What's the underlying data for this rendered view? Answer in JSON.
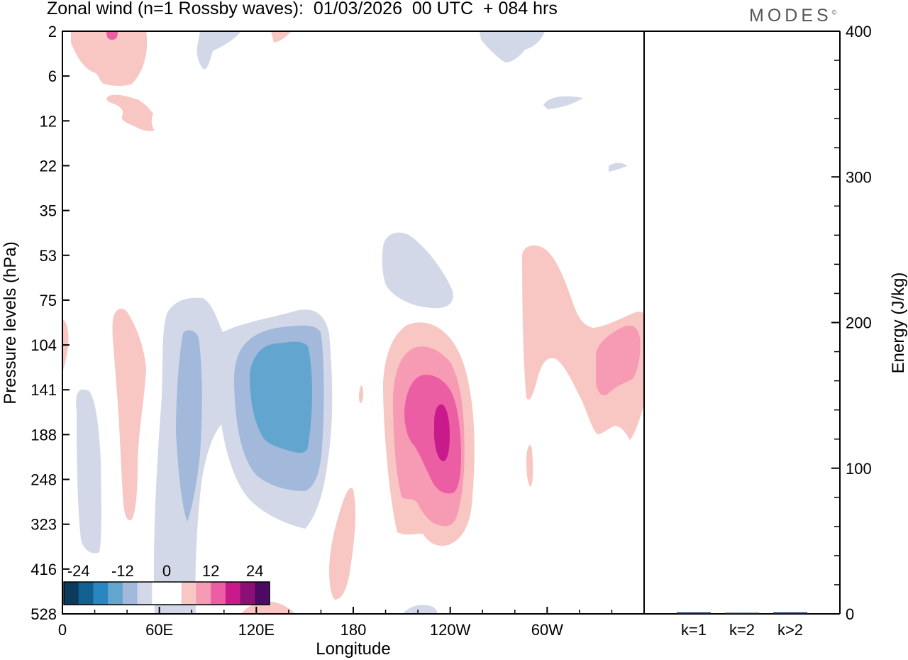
{
  "header": {
    "title": "Zonal wind (n=1 Rossby waves):  01/03/2026  00 UTC  + 084 hrs",
    "brand": "MODES",
    "brand_mark": "©"
  },
  "chart_data": [
    {
      "type": "heatmap",
      "title": "Zonal wind (n=1 Rossby waves):  01/03/2026  00 UTC  + 084 hrs",
      "xlabel": "Longitude",
      "ylabel": "Pressure levels (hPa)",
      "x_ticks": [
        "0",
        "60E",
        "120E",
        "180",
        "120W",
        "60W"
      ],
      "x_tick_values": [
        0,
        60,
        120,
        180,
        240,
        300
      ],
      "xlim": [
        0,
        360
      ],
      "y_ticks": [
        "2",
        "6",
        "12",
        "22",
        "35",
        "53",
        "75",
        "104",
        "141",
        "188",
        "248",
        "323",
        "416",
        "528"
      ],
      "colorbar": {
        "labels": [
          "-24",
          "-12",
          "0",
          "12",
          "24"
        ],
        "colors": [
          "#0b3a5c",
          "#125f92",
          "#2a86c1",
          "#62a6cf",
          "#a2b9db",
          "#d3d8e8",
          "#ffffff",
          "#ffffff",
          "#f8c7c3",
          "#f79bb4",
          "#ec5ea3",
          "#c91a8c",
          "#8c0f75",
          "#4d0a63"
        ]
      },
      "contour_levels": [
        -24,
        -20,
        -16,
        -12,
        -8,
        -4,
        0,
        4,
        8,
        12,
        16,
        20,
        24
      ],
      "features": [
        {
          "lon": 50,
          "level": "141",
          "value": 4
        },
        {
          "lon": 72,
          "level": "188",
          "value": -8
        },
        {
          "lon": 135,
          "level": "141",
          "value": -12
        },
        {
          "lon": 220,
          "level": "53",
          "value": -4
        },
        {
          "lon": 225,
          "level": "188",
          "value": 8
        },
        {
          "lon": 235,
          "level": "188",
          "value": 16
        },
        {
          "lon": 320,
          "level": "104",
          "value": 4
        },
        {
          "lon": 345,
          "level": "141",
          "value": 8
        }
      ]
    },
    {
      "type": "bar",
      "categories": [
        "k=1",
        "k=2",
        "k>2"
      ],
      "values": [
        1,
        0.5,
        1
      ],
      "ylabel": "Energy (J/kg)",
      "ylim": [
        0,
        400
      ],
      "y_ticks": [
        "0",
        "100",
        "200",
        "300",
        "400"
      ],
      "y_tick_values": [
        0,
        100,
        200,
        300,
        400
      ]
    }
  ]
}
